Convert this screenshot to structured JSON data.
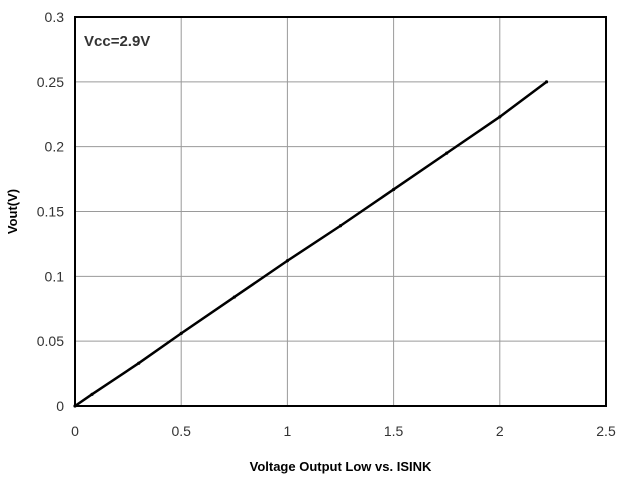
{
  "chart_data": {
    "type": "line",
    "title": "",
    "xlabel": "Voltage Output Low vs. ISINK",
    "ylabel": "Vout(V)",
    "annotation": "Vcc=2.9V",
    "xlim": [
      0,
      2.5
    ],
    "ylim": [
      0,
      0.3
    ],
    "x_ticks": [
      "0",
      "0.5",
      "1",
      "1.5",
      "2",
      "2.5"
    ],
    "y_ticks": [
      "0",
      "0.05",
      "0.1",
      "0.15",
      "0.2",
      "0.25",
      "0.3"
    ],
    "grid": true,
    "legend": "none",
    "series": [
      {
        "color": "#000000",
        "x": [
          0,
          0.08,
          0.3,
          0.5,
          0.75,
          1.0,
          1.25,
          1.5,
          1.75,
          2.0,
          2.22
        ],
        "y": [
          0,
          0.009,
          0.033,
          0.056,
          0.084,
          0.112,
          0.139,
          0.167,
          0.195,
          0.223,
          0.25
        ]
      }
    ]
  }
}
